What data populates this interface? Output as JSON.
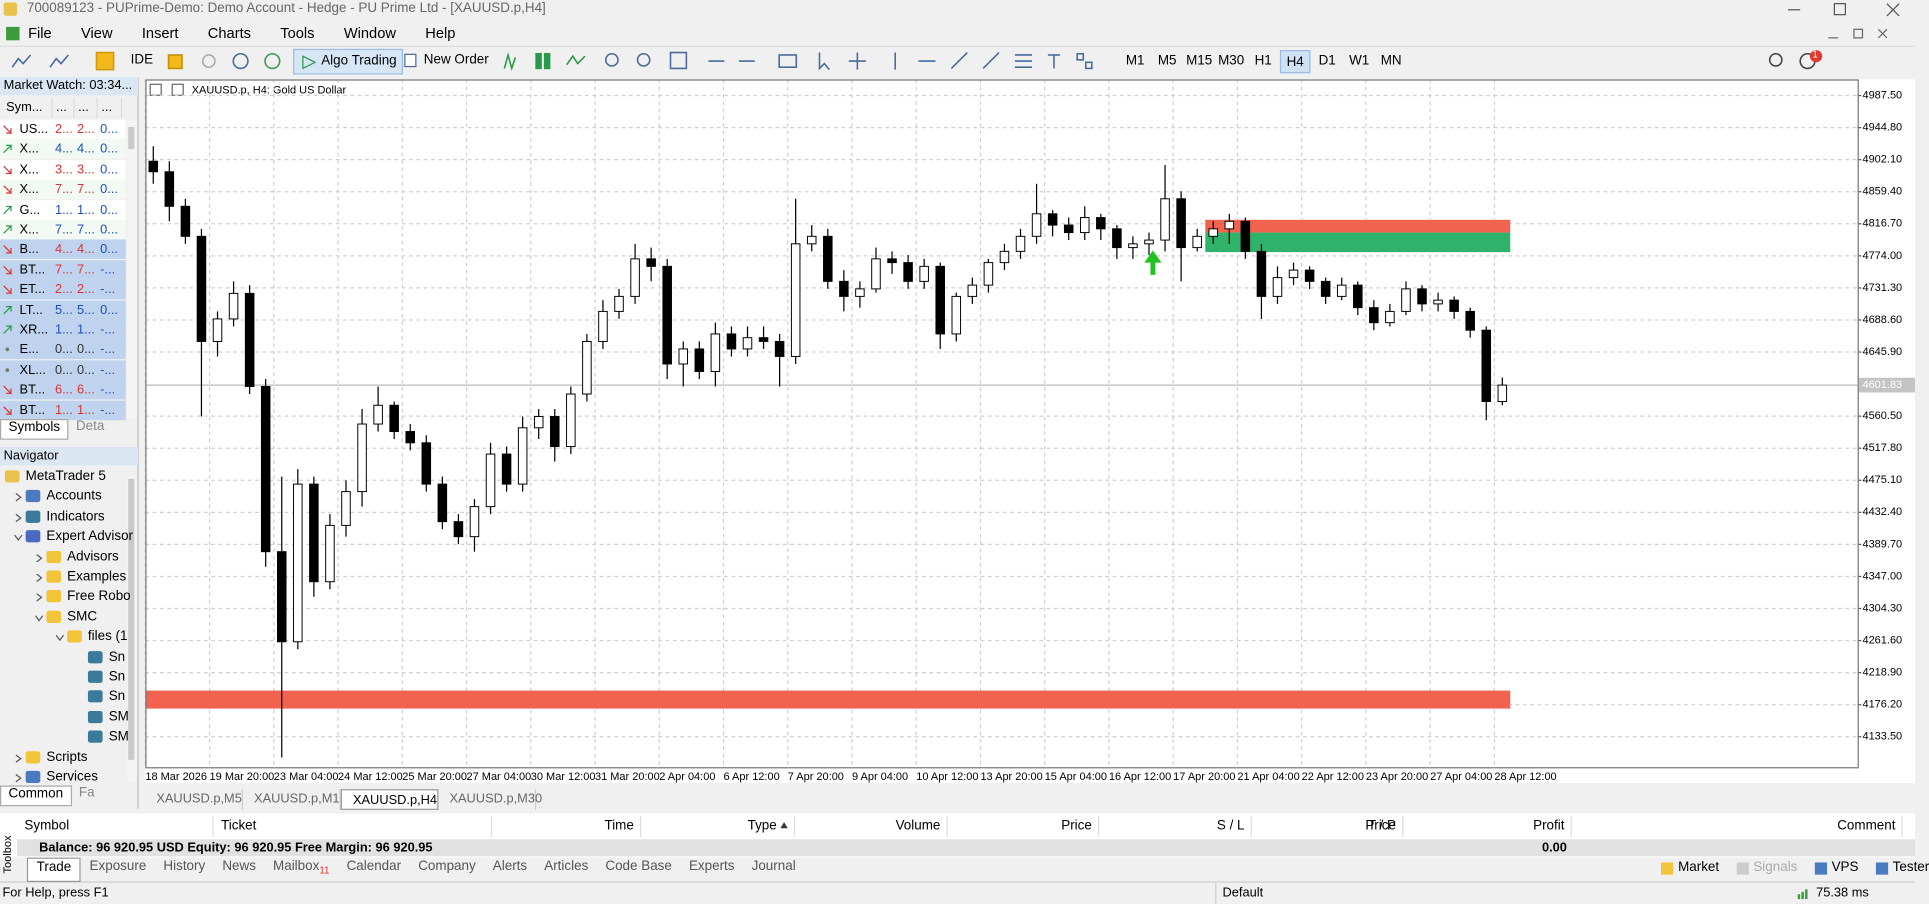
{
  "window": {
    "title": "700089123 - PUPrime-Demo: Demo Account - Hedge - PU Prime Ltd - [XAUUSD.p,H4]"
  },
  "menu": [
    "File",
    "View",
    "Insert",
    "Charts",
    "Tools",
    "Window",
    "Help"
  ],
  "toolbar": {
    "ide": "IDE",
    "algo_trading": "Algo Trading",
    "new_order": "New Order",
    "timeframes": [
      "M1",
      "M5",
      "M15",
      "M30",
      "H1",
      "H4",
      "D1",
      "W1",
      "MN"
    ],
    "active_timeframe": 5,
    "notifications": "1"
  },
  "market_watch": {
    "title": "Market Watch: 03:34...",
    "columns": [
      "Sym...",
      "...",
      "...",
      "..."
    ],
    "rows": [
      {
        "cells": [
          "US...",
          "2...",
          "2...",
          "0..."
        ],
        "trend": "down",
        "selected": false
      },
      {
        "cells": [
          "X...",
          "4...",
          "4...",
          "0..."
        ],
        "trend": "up",
        "selected": false
      },
      {
        "cells": [
          "X...",
          "3...",
          "3...",
          "0..."
        ],
        "trend": "down",
        "selected": false
      },
      {
        "cells": [
          "X...",
          "7...",
          "7...",
          "0..."
        ],
        "trend": "down",
        "selected": false
      },
      {
        "cells": [
          "G...",
          "1...",
          "1...",
          "0..."
        ],
        "trend": "up",
        "selected": false
      },
      {
        "cells": [
          "X...",
          "7...",
          "7...",
          "0..."
        ],
        "trend": "up",
        "selected": false
      },
      {
        "cells": [
          "B...",
          "4...",
          "4...",
          "0..."
        ],
        "trend": "down",
        "selected": true
      },
      {
        "cells": [
          "BT...",
          "7...",
          "7...",
          "-..."
        ],
        "trend": "down",
        "selected": true
      },
      {
        "cells": [
          "ET...",
          "2...",
          "2...",
          "-..."
        ],
        "trend": "down",
        "selected": true
      },
      {
        "cells": [
          "LT...",
          "5...",
          "5...",
          "0..."
        ],
        "trend": "up",
        "selected": true
      },
      {
        "cells": [
          "XR...",
          "1...",
          "1...",
          "-..."
        ],
        "trend": "up",
        "selected": true
      },
      {
        "cells": [
          "E...",
          "0...",
          "0...",
          "-..."
        ],
        "trend": "none",
        "selected": true
      },
      {
        "cells": [
          "XL...",
          "0...",
          "0...",
          "-..."
        ],
        "trend": "none",
        "selected": true
      },
      {
        "cells": [
          "BT...",
          "6...",
          "6...",
          "-..."
        ],
        "trend": "down",
        "selected": true
      },
      {
        "cells": [
          "BT...",
          "1...",
          "1...",
          "-..."
        ],
        "trend": "down",
        "selected": true
      }
    ],
    "tabs": [
      "Symbols",
      "Deta"
    ]
  },
  "navigator": {
    "title": "Navigator",
    "items": [
      {
        "label": "MetaTrader 5",
        "level": 0,
        "icon": "mt5",
        "expander": "none"
      },
      {
        "label": "Accounts",
        "level": 1,
        "icon": "accounts",
        "expander": "closed"
      },
      {
        "label": "Indicators",
        "level": 1,
        "icon": "indicator",
        "expander": "closed"
      },
      {
        "label": "Expert Advisor",
        "level": 1,
        "icon": "expert",
        "expander": "open"
      },
      {
        "label": "Advisors",
        "level": 2,
        "icon": "folder",
        "expander": "closed"
      },
      {
        "label": "Examples",
        "level": 2,
        "icon": "folder",
        "expander": "closed"
      },
      {
        "label": "Free Robo",
        "level": 2,
        "icon": "folder",
        "expander": "closed"
      },
      {
        "label": "SMC",
        "level": 2,
        "icon": "folder",
        "expander": "open"
      },
      {
        "label": "files (1",
        "level": 3,
        "icon": "folder",
        "expander": "open"
      },
      {
        "label": "Sn",
        "level": 4,
        "icon": "indicator",
        "expander": "none"
      },
      {
        "label": "Sn",
        "level": 4,
        "icon": "indicator",
        "expander": "none"
      },
      {
        "label": "Sn",
        "level": 4,
        "icon": "indicator",
        "expander": "none"
      },
      {
        "label": "SM",
        "level": 4,
        "icon": "indicator",
        "expander": "none"
      },
      {
        "label": "SM",
        "level": 4,
        "icon": "indicator",
        "expander": "none"
      },
      {
        "label": "Scripts",
        "level": 1,
        "icon": "scripts",
        "expander": "closed"
      },
      {
        "label": "Services",
        "level": 1,
        "icon": "services",
        "expander": "closed"
      }
    ],
    "tabs": [
      "Common",
      "Fa"
    ]
  },
  "chart_tabs": {
    "tabs": [
      "XAUUSD.p,M5",
      "XAUUSD.p,M1",
      "XAUUSD.p,H4",
      "XAUUSD.p,M30"
    ],
    "active": 2
  },
  "chart_data": {
    "type": "candlestick",
    "title": "XAUUSD.p, H4:  Gold US Dollar",
    "categories": [
      "18 Mar 2026",
      null,
      null,
      null,
      "19 Mar 20:00",
      null,
      null,
      null,
      "23 Mar 04:00",
      null,
      null,
      null,
      "24 Mar 12:00",
      null,
      null,
      null,
      "25 Mar 20:00",
      null,
      null,
      null,
      "27 Mar 04:00",
      null,
      null,
      null,
      "30 Mar 12:00",
      null,
      null,
      null,
      "31 Mar 20:00",
      null,
      null,
      null,
      "2 Apr 04:00",
      null,
      null,
      null,
      "6 Apr 12:00",
      null,
      null,
      null,
      "7 Apr 20:00",
      null,
      null,
      null,
      "9 Apr 04:00",
      null,
      null,
      null,
      "10 Apr 12:00",
      null,
      null,
      null,
      "13 Apr 20:00",
      null,
      null,
      null,
      "15 Apr 04:00",
      null,
      null,
      null,
      "16 Apr 12:00",
      null,
      null,
      null,
      "17 Apr 20:00",
      null,
      null,
      null,
      "21 Apr 04:00",
      null,
      null,
      null,
      "22 Apr 12:00",
      null,
      null,
      null,
      "23 Apr 20:00",
      null,
      null,
      null,
      "27 Apr 04:00",
      null,
      null,
      null,
      "28 Apr 12:00"
    ],
    "open": [
      4900,
      4886,
      4840,
      4800,
      4660,
      4690,
      4724,
      4600,
      4380,
      4260,
      4470,
      4340,
      4415,
      4460,
      4550,
      4575,
      4540,
      4525,
      4470,
      4420,
      4400,
      4440,
      4510,
      4470,
      4545,
      4560,
      4520,
      4590,
      4660,
      4700,
      4720,
      4770,
      4760,
      4630,
      4650,
      4620,
      4670,
      4650,
      4665,
      4660,
      4640,
      4790,
      4800,
      4740,
      4720,
      4730,
      4770,
      4765,
      4740,
      4760,
      4670,
      4720,
      4735,
      4765,
      4780,
      4800,
      4830,
      4815,
      4805,
      4825,
      4810,
      4785,
      4790,
      4795,
      4850,
      4785,
      4800,
      4810,
      4820,
      4780,
      4720,
      4745,
      4755,
      4740,
      4720,
      4735,
      4705,
      4685,
      4700,
      4730,
      4710,
      4715,
      4700,
      4675,
      4580
    ],
    "high": [
      4920,
      4900,
      4850,
      4810,
      4700,
      4740,
      4735,
      4610,
      4480,
      4490,
      4480,
      4430,
      4475,
      4570,
      4600,
      4580,
      4550,
      4535,
      4480,
      4430,
      4450,
      4525,
      4520,
      4560,
      4570,
      4570,
      4600,
      4670,
      4715,
      4730,
      4790,
      4785,
      4770,
      4660,
      4660,
      4685,
      4680,
      4680,
      4680,
      4670,
      4850,
      4815,
      4810,
      4755,
      4740,
      4785,
      4780,
      4775,
      4770,
      4765,
      4725,
      4745,
      4770,
      4790,
      4810,
      4870,
      4835,
      4825,
      4840,
      4830,
      4815,
      4800,
      4805,
      4895,
      4860,
      4810,
      4820,
      4830,
      4825,
      4790,
      4760,
      4765,
      4760,
      4745,
      4745,
      4740,
      4715,
      4710,
      4740,
      4735,
      4725,
      4720,
      4705,
      4680,
      4612
    ],
    "low": [
      4870,
      4820,
      4790,
      4560,
      4640,
      4680,
      4590,
      4360,
      4106,
      4250,
      4320,
      4330,
      4400,
      4440,
      4540,
      4530,
      4515,
      4460,
      4410,
      4390,
      4380,
      4430,
      4460,
      4460,
      4530,
      4500,
      4510,
      4580,
      4650,
      4690,
      4710,
      4740,
      4610,
      4600,
      4610,
      4600,
      4640,
      4640,
      4650,
      4600,
      4630,
      4780,
      4730,
      4700,
      4705,
      4725,
      4750,
      4730,
      4730,
      4650,
      4660,
      4710,
      4725,
      4755,
      4770,
      4790,
      4800,
      4795,
      4795,
      4795,
      4770,
      4770,
      4775,
      4780,
      4740,
      4780,
      4790,
      4790,
      4770,
      4690,
      4710,
      4735,
      4730,
      4710,
      4715,
      4695,
      4675,
      4680,
      4695,
      4700,
      4700,
      4690,
      4665,
      4555,
      4575
    ],
    "close": [
      4886,
      4840,
      4800,
      4660,
      4690,
      4724,
      4600,
      4380,
      4260,
      4470,
      4340,
      4415,
      4460,
      4550,
      4575,
      4540,
      4525,
      4470,
      4420,
      4400,
      4440,
      4510,
      4470,
      4545,
      4560,
      4520,
      4590,
      4660,
      4700,
      4720,
      4770,
      4760,
      4630,
      4650,
      4620,
      4670,
      4650,
      4665,
      4660,
      4640,
      4790,
      4800,
      4740,
      4720,
      4730,
      4770,
      4765,
      4740,
      4760,
      4670,
      4720,
      4735,
      4765,
      4780,
      4800,
      4830,
      4815,
      4805,
      4825,
      4810,
      4785,
      4790,
      4795,
      4850,
      4785,
      4800,
      4810,
      4820,
      4780,
      4720,
      4745,
      4755,
      4740,
      4720,
      4735,
      4705,
      4685,
      4700,
      4730,
      4710,
      4715,
      4700,
      4675,
      4580,
      4601.83
    ],
    "up_color": "#ffffff",
    "down_color": "#000000",
    "ylim": [
      4093,
      5009
    ],
    "yticks": [
      {
        "value": 4987.5,
        "label": "4987.50"
      },
      {
        "value": 4944.8,
        "label": "4944.80"
      },
      {
        "value": 4902.1,
        "label": "4902.10"
      },
      {
        "value": 4859.4,
        "label": "4859.40"
      },
      {
        "value": 4816.7,
        "label": "4816.70"
      },
      {
        "value": 4774,
        "label": "4774.00"
      },
      {
        "value": 4731.3,
        "label": "4731.30"
      },
      {
        "value": 4688.6,
        "label": "4688.60"
      },
      {
        "value": 4645.9,
        "label": "4645.90"
      },
      {
        "value": 4560.5,
        "label": "4560.50"
      },
      {
        "value": 4517.8,
        "label": "4517.80"
      },
      {
        "value": 4475.1,
        "label": "4475.10"
      },
      {
        "value": 4432.4,
        "label": "4432.40"
      },
      {
        "value": 4389.7,
        "label": "4389.70"
      },
      {
        "value": 4347,
        "label": "4347.00"
      },
      {
        "value": 4304.3,
        "label": "4304.30"
      },
      {
        "value": 4261.6,
        "label": "4261.60"
      },
      {
        "value": 4218.9,
        "label": "4218.90"
      },
      {
        "value": 4176.2,
        "label": "4176.20"
      },
      {
        "value": 4133.5,
        "label": "4133.50"
      }
    ],
    "last_price": 4601.83,
    "grid": true,
    "zones": [
      {
        "from_index": 0,
        "to_index": 84,
        "low": 4171,
        "high": 4195,
        "color": "#f2634f"
      },
      {
        "from_index": 66,
        "to_index": 84,
        "low": 4805,
        "high": 4822,
        "color": "#f2634f"
      },
      {
        "from_index": 66,
        "to_index": 84,
        "low": 4779,
        "high": 4805,
        "color": "#2fb26a"
      }
    ]
  },
  "terminal": {
    "columns": [
      "Symbol",
      "Ticket",
      "Time",
      "Type",
      "Volume",
      "Price",
      "S / L",
      "T / P",
      "Price",
      "Profit",
      "Comment"
    ],
    "summary": "Balance: 96 920.95 USD  Equity: 96 920.95  Free Margin: 96 920.95",
    "profit": "0.00",
    "side_label": "Toolbox",
    "tabs": [
      "Trade",
      "Exposure",
      "History",
      "News",
      "Mailbox",
      "Calendar",
      "Company",
      "Alerts",
      "Articles",
      "Code Base",
      "Experts",
      "Journal"
    ],
    "mailbox_count": "11",
    "active_tab": 0,
    "services": [
      "Market",
      "Signals",
      "VPS",
      "Tester"
    ]
  },
  "status_bar": {
    "help": "For Help, press F1",
    "profile": "Default",
    "ping": "75.38 ms"
  }
}
